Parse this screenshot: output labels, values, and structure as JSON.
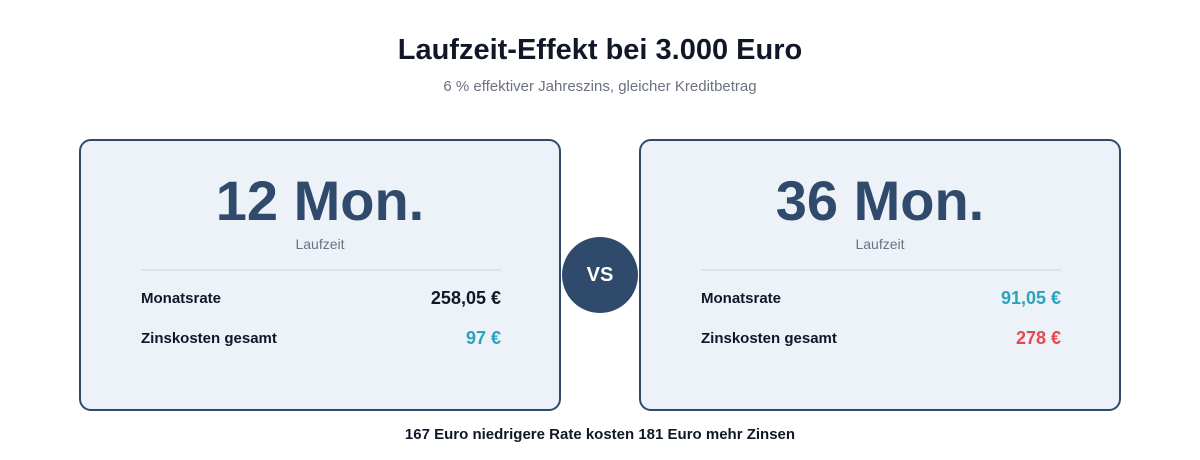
{
  "header": {
    "title": "Laufzeit-Effekt bei 3.000 Euro",
    "subtitle": "6 % effektiver Jahreszins, gleicher Kreditbetrag"
  },
  "cards": [
    {
      "term": "12 Mon.",
      "term_label": "Laufzeit",
      "rows": [
        {
          "label": "Monatsrate",
          "value": "258,05 €",
          "color": "#101828"
        },
        {
          "label": "Zinskosten gesamt",
          "value": "97 €",
          "color": "#2aa3bb"
        }
      ]
    },
    {
      "term": "36 Mon.",
      "term_label": "Laufzeit",
      "rows": [
        {
          "label": "Monatsrate",
          "value": "91,05 €",
          "color": "#2aa3bb"
        },
        {
          "label": "Zinskosten gesamt",
          "value": "278 €",
          "color": "#e5484d"
        }
      ]
    }
  ],
  "vs_label": "VS",
  "footer": "167 Euro niedrigere Rate kosten 181 Euro mehr Zinsen",
  "colors": {
    "accent": "#2f4a6b",
    "card_bg": "#edf2f9",
    "teal": "#2aa3bb",
    "red": "#e5484d"
  }
}
